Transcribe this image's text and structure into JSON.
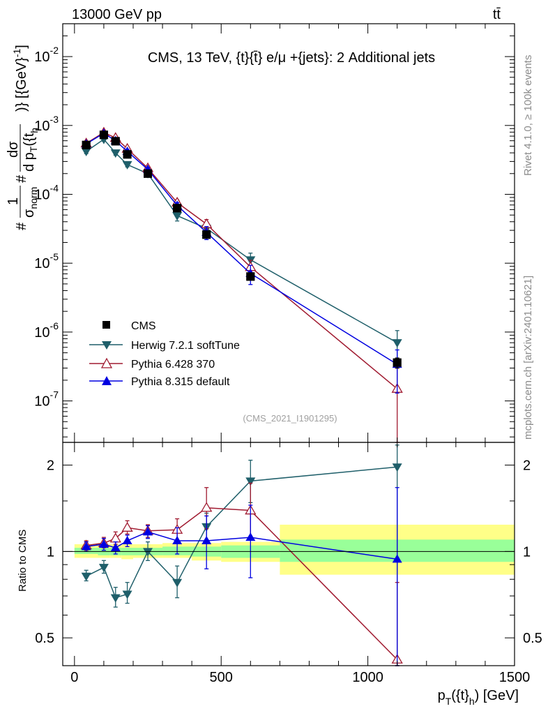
{
  "header": {
    "left": "13000 GeV pp",
    "right": "tt̄"
  },
  "side_labels": {
    "top": "Rivet 4.1.0, ≥ 100k events",
    "bottom": "mcplots.cern.ch [arXiv:2401.10621]"
  },
  "colors": {
    "cms": "#000000",
    "herwig": "#1f5f6a",
    "pythia6": "#a01a30",
    "pythia8": "#0000e0",
    "band_inner": "#99ff99",
    "band_outer": "#ffff88",
    "side_text": "#8c8c8c",
    "source_text": "#a0a0a0"
  },
  "chart_data": [
    {
      "type": "line",
      "title": "CMS, 13 TeV, {t}{t̄} e/μ +{jets}: 2 Additional jets",
      "ylabel": "#frac{1}{σ_norm} #frac{dσ}{d p_T({t}_h)} [(GeV)^-1]",
      "ylabel_parts": {
        "prefix": "#",
        "frac1_num": "1",
        "frac1_den": "σ",
        "frac1_den_sub": "norm",
        "mid": "#",
        "frac2_num": "dσ",
        "frac2_den": "d p",
        "frac2_den_sub": "T",
        "frac2_den_rest": "({t",
        "frac2_den_sub2": "h",
        "tail": ")} [{GeV}",
        "tail_sup": "-1",
        "tail_end": "]"
      },
      "yscale": "log",
      "ylim": [
        2.5e-08,
        0.03
      ],
      "xlim": [
        -40,
        1500
      ],
      "y_ticks": [
        {
          "value": 1e-07,
          "base": "10",
          "exp": "-7"
        },
        {
          "value": 1e-06,
          "base": "10",
          "exp": "-6"
        },
        {
          "value": 1e-05,
          "base": "10",
          "exp": "-5"
        },
        {
          "value": 0.0001,
          "base": "10",
          "exp": "-4"
        },
        {
          "value": 0.001,
          "base": "10",
          "exp": "-3"
        },
        {
          "value": 0.01,
          "base": "10",
          "exp": "-2"
        }
      ],
      "source_label": "(CMS_2021_I1901295)",
      "legend_position": "lower-left",
      "x": [
        40,
        100,
        140,
        180,
        250,
        350,
        450,
        600,
        1100
      ],
      "x_low": [
        0,
        80,
        120,
        160,
        200,
        300,
        400,
        500,
        700
      ],
      "x_high": [
        80,
        120,
        160,
        200,
        300,
        400,
        500,
        700,
        1500
      ],
      "series": [
        {
          "name": "CMS",
          "key": "cms",
          "marker": "square",
          "values": [
            0.00052,
            0.00073,
            0.00059,
            0.00038,
            0.0002,
            6.3e-05,
            2.6e-05,
            6.4e-06,
            3.6e-07
          ],
          "errors_up": [
            0.00056,
            0.00077,
            0.00063,
            0.000405,
            0.000215,
            6.8e-05,
            2.85e-05,
            7e-06,
            4.2e-07
          ],
          "errors_down": [
            0.00048,
            0.00069,
            0.00055,
            0.000355,
            0.000185,
            5.8e-05,
            2.35e-05,
            5.8e-06,
            3e-07
          ]
        },
        {
          "name": "Herwig 7.2.1 softTune",
          "key": "herwig",
          "marker": "triangle-down",
          "values": [
            0.00042,
            0.00063,
            0.0004,
            0.00027,
            0.0002,
            4.9e-05,
            3.2e-05,
            1.12e-05,
            7e-07
          ],
          "errors_up": [
            0.00045,
            0.00067,
            0.00043,
            0.00029,
            0.00022,
            5.8e-05,
            3.8e-05,
            1.4e-05,
            1.05e-06
          ],
          "errors_down": [
            0.00039,
            0.00059,
            0.00037,
            0.00025,
            0.00018,
            4.1e-05,
            2.6e-05,
            8.5e-06,
            4e-07
          ]
        },
        {
          "name": "Pythia 6.428 370",
          "key": "pythia6",
          "marker": "triangle-up-open",
          "values": [
            0.00055,
            0.00079,
            0.00066,
            0.00046,
            0.00024,
            7.6e-05,
            3.7e-05,
            8.8e-06,
            1.5e-07
          ],
          "errors_up": [
            0.00059,
            0.00084,
            0.0007,
            0.00049,
            0.000255,
            8.3e-05,
            4.3e-05,
            1.1e-05,
            3e-07
          ],
          "errors_down": [
            0.00051,
            0.00074,
            0.00062,
            0.00043,
            0.000225,
            6.9e-05,
            3.1e-05,
            6.6e-06,
            2.5e-08
          ]
        },
        {
          "name": "Pythia 8.315 default",
          "key": "pythia8",
          "marker": "triangle-up",
          "values": [
            0.00054,
            0.00077,
            0.0006,
            0.00042,
            0.00023,
            6.9e-05,
            2.8e-05,
            7.1e-06,
            3.4e-07
          ],
          "errors_up": [
            0.00058,
            0.00082,
            0.00064,
            0.00045,
            0.000245,
            7.6e-05,
            3.4e-05,
            9.3e-06,
            5.5e-07
          ],
          "errors_down": [
            0.0005,
            0.00072,
            0.00056,
            0.00039,
            0.000215,
            6.2e-05,
            2.2e-05,
            4.9e-06,
            1.3e-07
          ]
        }
      ]
    },
    {
      "type": "line",
      "ylabel": "Ratio to CMS",
      "xlabel": "p_T({t}_h) [GeV]",
      "xlabel_parts": {
        "main": "p",
        "sub": "T",
        "rest": "({t}",
        "sub2": "h",
        "end": ") [GeV]"
      },
      "yscale": "log",
      "ylim": [
        0.4,
        2.4
      ],
      "xlim": [
        -40,
        1500
      ],
      "x_ticks": [
        0,
        500,
        1000,
        1500
      ],
      "x_tick_labels": [
        "0",
        "500",
        "1000",
        "1500"
      ],
      "y_ticks": [
        0.5,
        1,
        2
      ],
      "y_tick_labels": [
        "0.5",
        "1",
        "2"
      ],
      "reference_line": 1,
      "x": [
        40,
        100,
        140,
        180,
        250,
        350,
        450,
        600,
        1100
      ],
      "bands": {
        "x_low": [
          0,
          80,
          120,
          160,
          200,
          300,
          400,
          500,
          700
        ],
        "x_high": [
          80,
          120,
          160,
          200,
          300,
          400,
          500,
          700,
          1500
        ],
        "inner_low": [
          0.98,
          0.97,
          0.97,
          0.97,
          0.97,
          0.97,
          0.96,
          0.95,
          0.92
        ],
        "inner_high": [
          1.03,
          1.03,
          1.03,
          1.03,
          1.03,
          1.04,
          1.04,
          1.05,
          1.1
        ],
        "outer_low": [
          0.95,
          0.95,
          0.95,
          0.94,
          0.95,
          0.95,
          0.93,
          0.92,
          0.83
        ],
        "outer_high": [
          1.06,
          1.06,
          1.06,
          1.06,
          1.06,
          1.07,
          1.07,
          1.08,
          1.24
        ]
      },
      "series": [
        {
          "name": "Herwig 7.2.1 softTune",
          "key": "herwig",
          "marker": "triangle-down",
          "values": [
            0.82,
            0.88,
            0.69,
            0.71,
            1.0,
            0.78,
            1.22,
            1.76,
            1.97
          ],
          "errors_up": [
            0.86,
            0.93,
            0.75,
            0.78,
            1.08,
            0.89,
            1.36,
            2.08,
            2.35
          ],
          "errors_down": [
            0.79,
            0.84,
            0.64,
            0.66,
            0.93,
            0.69,
            1.1,
            1.48,
            0.4
          ]
        },
        {
          "name": "Pythia 6.428 370",
          "key": "pythia6",
          "marker": "triangle-up-open",
          "values": [
            1.05,
            1.07,
            1.11,
            1.21,
            1.18,
            1.19,
            1.42,
            1.39,
            0.42
          ],
          "errors_up": [
            1.09,
            1.12,
            1.17,
            1.28,
            1.24,
            1.3,
            1.67,
            1.73,
            0.78
          ],
          "errors_down": [
            1.01,
            1.03,
            1.06,
            1.15,
            1.12,
            1.09,
            1.2,
            1.11,
            0.4
          ]
        },
        {
          "name": "Pythia 8.315 default",
          "key": "pythia8",
          "marker": "triangle-up",
          "values": [
            1.04,
            1.06,
            1.03,
            1.09,
            1.17,
            1.09,
            1.09,
            1.12,
            0.94
          ],
          "errors_up": [
            1.08,
            1.11,
            1.08,
            1.14,
            1.23,
            1.21,
            1.33,
            1.45,
            1.67
          ],
          "errors_down": [
            1.0,
            1.01,
            0.98,
            1.04,
            1.11,
            0.98,
            0.87,
            0.81,
            0.4
          ]
        }
      ]
    }
  ]
}
